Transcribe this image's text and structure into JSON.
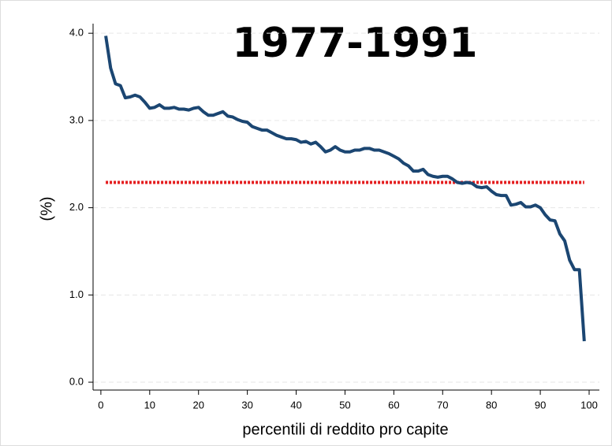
{
  "chart_data": {
    "type": "line",
    "title": "1977-1991",
    "xlabel": "percentili di reddito pro capite",
    "ylabel": "(%)",
    "x": [
      1,
      2,
      3,
      4,
      5,
      6,
      7,
      8,
      9,
      10,
      11,
      12,
      13,
      14,
      15,
      16,
      17,
      18,
      19,
      20,
      21,
      22,
      23,
      24,
      25,
      26,
      27,
      28,
      29,
      30,
      31,
      32,
      33,
      34,
      35,
      36,
      37,
      38,
      39,
      40,
      41,
      42,
      43,
      44,
      45,
      46,
      47,
      48,
      49,
      50,
      51,
      52,
      53,
      54,
      55,
      56,
      57,
      58,
      59,
      60,
      61,
      62,
      63,
      64,
      65,
      66,
      67,
      68,
      69,
      70,
      71,
      72,
      73,
      74,
      75,
      76,
      77,
      78,
      79,
      80,
      81,
      82,
      83,
      84,
      85,
      86,
      87,
      88,
      89,
      90,
      91,
      92,
      93,
      94,
      95,
      96,
      97,
      98,
      99
    ],
    "values": [
      3.97,
      3.6,
      3.42,
      3.4,
      3.26,
      3.27,
      3.29,
      3.27,
      3.21,
      3.14,
      3.15,
      3.18,
      3.14,
      3.14,
      3.15,
      3.13,
      3.13,
      3.12,
      3.14,
      3.15,
      3.1,
      3.06,
      3.06,
      3.08,
      3.1,
      3.05,
      3.04,
      3.01,
      2.99,
      2.98,
      2.93,
      2.91,
      2.89,
      2.89,
      2.86,
      2.83,
      2.81,
      2.79,
      2.79,
      2.78,
      2.75,
      2.76,
      2.73,
      2.75,
      2.7,
      2.64,
      2.66,
      2.7,
      2.66,
      2.64,
      2.64,
      2.66,
      2.66,
      2.68,
      2.68,
      2.66,
      2.66,
      2.64,
      2.62,
      2.59,
      2.56,
      2.51,
      2.48,
      2.42,
      2.42,
      2.44,
      2.38,
      2.36,
      2.35,
      2.36,
      2.36,
      2.33,
      2.29,
      2.28,
      2.29,
      2.28,
      2.24,
      2.23,
      2.24,
      2.19,
      2.15,
      2.14,
      2.14,
      2.03,
      2.04,
      2.06,
      2.01,
      2.01,
      2.03,
      2.0,
      1.92,
      1.86,
      1.85,
      1.7,
      1.62,
      1.4,
      1.29,
      1.29,
      0.47
    ],
    "color": "#1b4672",
    "hline": {
      "value": 2.29,
      "x": [
        1,
        99
      ],
      "color": "#e41a1c"
    },
    "xlim": [
      -1.6,
      102.1
    ],
    "ylim": [
      -0.09,
      4.11
    ],
    "xticks": [
      0,
      10,
      20,
      30,
      40,
      50,
      60,
      70,
      80,
      90,
      100
    ],
    "yticks": [
      {
        "value": 0,
        "label": "0.0"
      },
      {
        "value": 1,
        "label": "1.0"
      },
      {
        "value": 2,
        "label": "2.0"
      },
      {
        "value": 3,
        "label": "3.0"
      },
      {
        "value": 4,
        "label": "4.0"
      }
    ],
    "grid": true
  }
}
